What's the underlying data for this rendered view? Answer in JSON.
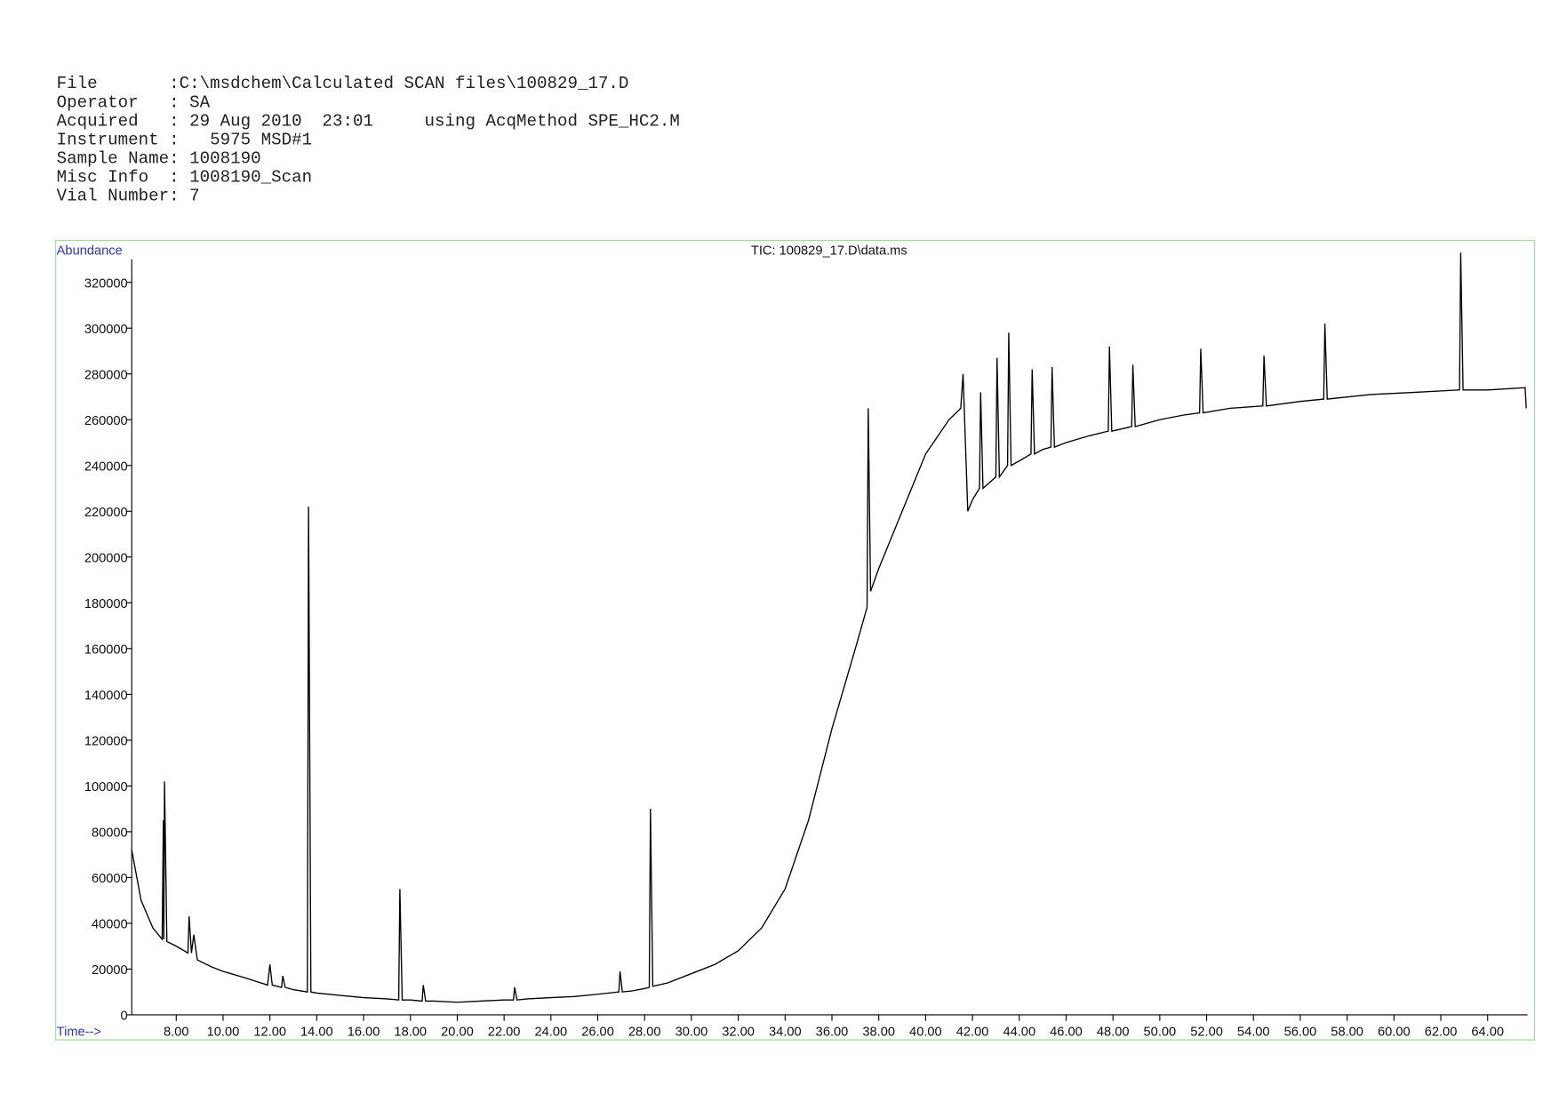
{
  "header": {
    "lines": [
      "File       :C:\\msdchem\\Calculated SCAN files\\100829_17.D",
      "Operator   : SA",
      "Acquired   : 29 Aug 2010  23:01     using AcqMethod SPE_HC2.M",
      "Instrument :   5975 MSD#1",
      "Sample Name: 1008190",
      "Misc Info  : 1008190_Scan",
      "Vial Number: 7"
    ]
  },
  "chart_data": {
    "type": "line",
    "title": "TIC: 100829_17.D\\data.ms",
    "y_label": "Abundance",
    "x_label": "Time-->",
    "xlim": [
      6.1,
      65.7
    ],
    "ylim": [
      0,
      330000
    ],
    "xticks": [
      {
        "value": 8,
        "label": "8.00"
      },
      {
        "value": 10,
        "label": "10.00"
      },
      {
        "value": 12,
        "label": "12.00"
      },
      {
        "value": 14,
        "label": "14.00"
      },
      {
        "value": 16,
        "label": "16.00"
      },
      {
        "value": 18,
        "label": "18.00"
      },
      {
        "value": 20,
        "label": "20.00"
      },
      {
        "value": 22,
        "label": "22.00"
      },
      {
        "value": 24,
        "label": "24.00"
      },
      {
        "value": 26,
        "label": "26.00"
      },
      {
        "value": 28,
        "label": "28.00"
      },
      {
        "value": 30,
        "label": "30.00"
      },
      {
        "value": 32,
        "label": "32.00"
      },
      {
        "value": 34,
        "label": "34.00"
      },
      {
        "value": 36,
        "label": "36.00"
      },
      {
        "value": 38,
        "label": "38.00"
      },
      {
        "value": 40,
        "label": "40.00"
      },
      {
        "value": 42,
        "label": "42.00"
      },
      {
        "value": 44,
        "label": "44.00"
      },
      {
        "value": 46,
        "label": "46.00"
      },
      {
        "value": 48,
        "label": "48.00"
      },
      {
        "value": 50,
        "label": "50.00"
      },
      {
        "value": 52,
        "label": "52.00"
      },
      {
        "value": 54,
        "label": "54.00"
      },
      {
        "value": 56,
        "label": "56.00"
      },
      {
        "value": 58,
        "label": "58.00"
      },
      {
        "value": 60,
        "label": "60.00"
      },
      {
        "value": 62,
        "label": "62.00"
      },
      {
        "value": 64,
        "label": "64.00"
      }
    ],
    "yticks": [
      0,
      20000,
      40000,
      60000,
      80000,
      100000,
      120000,
      140000,
      160000,
      180000,
      200000,
      220000,
      240000,
      260000,
      280000,
      300000,
      320000
    ],
    "x": [
      6.1,
      6.5,
      7.0,
      7.4,
      7.45,
      7.47,
      7.5,
      7.6,
      8.0,
      8.5,
      8.55,
      8.65,
      8.75,
      8.9,
      9.5,
      10,
      11,
      11.9,
      12.0,
      12.1,
      12.5,
      12.55,
      12.65,
      13,
      13.6,
      13.65,
      13.75,
      14,
      15,
      16,
      17,
      17.5,
      17.55,
      17.65,
      18,
      18.5,
      18.55,
      18.65,
      19,
      20,
      21,
      22,
      22.4,
      22.45,
      22.55,
      23,
      24,
      25,
      26,
      26.9,
      26.95,
      27.05,
      27.5,
      28,
      28.2,
      28.25,
      28.35,
      29,
      30,
      31,
      32,
      33,
      34,
      35,
      36,
      37,
      37.5,
      37.55,
      37.65,
      38,
      39,
      40,
      41,
      41.5,
      41.6,
      41.7,
      41.8,
      42,
      42.3,
      42.35,
      42.45,
      43,
      43.05,
      43.15,
      43.5,
      43.55,
      43.65,
      44,
      44.5,
      44.55,
      44.65,
      45,
      45.35,
      45.4,
      45.5,
      46,
      47,
      47.8,
      47.85,
      47.95,
      48.8,
      48.85,
      48.95,
      50,
      51,
      51.7,
      51.75,
      51.85,
      53,
      54.4,
      54.45,
      54.55,
      56,
      57,
      57.05,
      57.15,
      59,
      61,
      62.8,
      62.85,
      62.95,
      64,
      65.6,
      65.65
    ],
    "series": [
      {
        "color": "#000000",
        "values": [
          72000,
          50000,
          38000,
          33000,
          85000,
          33000,
          102000,
          32000,
          30000,
          27000,
          43000,
          27000,
          35000,
          24000,
          21000,
          19000,
          16000,
          13000,
          22000,
          13000,
          12000,
          17000,
          12000,
          11000,
          10000,
          222000,
          10000,
          9500,
          8500,
          7500,
          7000,
          6500,
          55000,
          6500,
          6500,
          6000,
          13000,
          6000,
          6000,
          5500,
          6000,
          6500,
          6500,
          12000,
          6500,
          7000,
          7500,
          8000,
          9000,
          10000,
          19000,
          10000,
          10500,
          11500,
          12000,
          90000,
          12500,
          14000,
          18000,
          22000,
          28000,
          38000,
          55000,
          85000,
          125000,
          160000,
          178000,
          265000,
          185000,
          195000,
          220000,
          245000,
          260000,
          265000,
          280000,
          250000,
          220000,
          225000,
          230000,
          272000,
          230000,
          235000,
          287000,
          235000,
          240000,
          298000,
          240000,
          242000,
          245000,
          282000,
          245000,
          247000,
          248000,
          283000,
          248000,
          250000,
          253000,
          255000,
          292000,
          255000,
          257000,
          284000,
          257000,
          260000,
          262000,
          263000,
          291000,
          263000,
          265000,
          266000,
          288000,
          266000,
          268000,
          269000,
          302000,
          269000,
          271000,
          272000,
          273000,
          333000,
          273000,
          273000,
          274000,
          265000
        ]
      }
    ]
  }
}
